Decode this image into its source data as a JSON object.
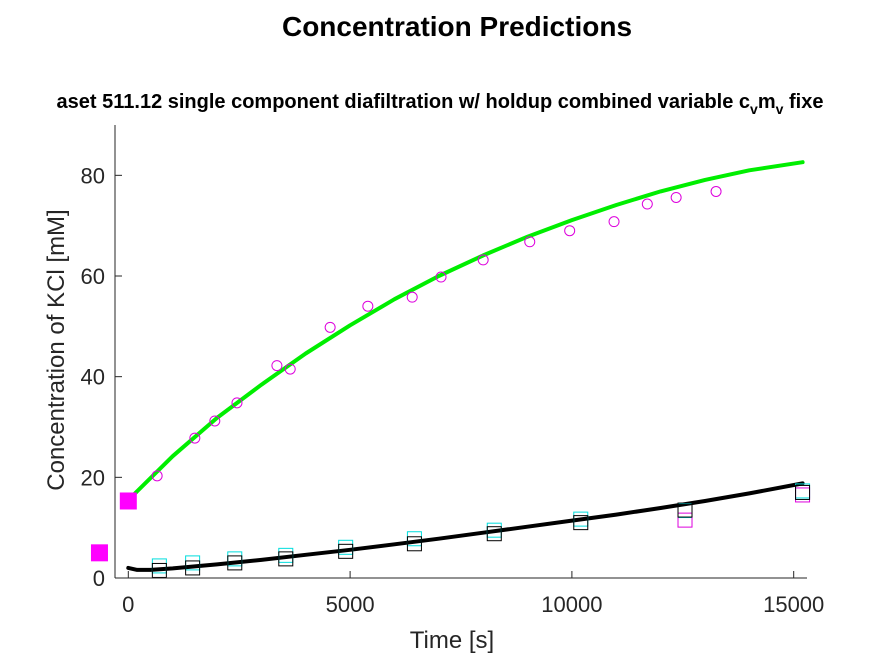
{
  "chart_data": {
    "type": "scatter",
    "title": "Concentration Predictions",
    "subtitle_parts": [
      "aset 511.12 single component diafiltration w/ holdup combined variable c",
      "v",
      "m",
      "v",
      " fixe"
    ],
    "xlabel": "Time [s]",
    "ylabel": "Concentration of KCl [mM]",
    "xlim": [
      -300,
      15300
    ],
    "ylim": [
      0,
      90
    ],
    "xticks": [
      0,
      5000,
      10000,
      15000
    ],
    "xtick_labels": [
      "0",
      "5000",
      "10000",
      "15000"
    ],
    "yticks": [
      0,
      20,
      40,
      60,
      80
    ],
    "ytick_labels": [
      "0",
      "20",
      "40",
      "60",
      "80"
    ],
    "grid": false,
    "legend": "none",
    "series": [
      {
        "kind": "line",
        "color": "#00ee00",
        "x": [
          0,
          1000,
          2000,
          3000,
          4000,
          5000,
          6000,
          7000,
          8000,
          9000,
          10000,
          11000,
          12000,
          13000,
          14000,
          15200
        ],
        "y": [
          15.5,
          24.2,
          31.8,
          38.4,
          44.6,
          50.2,
          55.4,
          60.0,
          64.1,
          67.8,
          71.1,
          74.1,
          76.8,
          79.1,
          81.0,
          82.6
        ]
      },
      {
        "kind": "line",
        "color": "#000000",
        "x": [
          0,
          200,
          500,
          1000,
          2000,
          3000,
          4000,
          5000,
          6000,
          7000,
          8000,
          9000,
          10000,
          11000,
          12000,
          13000,
          14000,
          15200
        ],
        "y": [
          2.0,
          1.6,
          1.6,
          1.9,
          2.7,
          3.6,
          4.6,
          5.6,
          6.7,
          7.8,
          9.0,
          10.2,
          11.4,
          12.6,
          13.9,
          15.3,
          16.8,
          18.8
        ]
      },
      {
        "kind": "markers",
        "marker": "circle",
        "color": "#dd00dd",
        "x": [
          650,
          1500,
          1950,
          2450,
          3350,
          3650,
          4550,
          5400,
          6400,
          7050,
          8000,
          9050,
          9950,
          10950,
          11700,
          12350,
          13250
        ],
        "y": [
          20.3,
          27.8,
          31.2,
          34.8,
          42.2,
          41.5,
          49.8,
          54.0,
          55.8,
          59.8,
          63.2,
          66.8,
          69.0,
          70.8,
          74.3,
          75.6,
          76.8
        ]
      },
      {
        "kind": "markers",
        "marker": "square",
        "color": "#00dddd",
        "x": [
          700,
          1450,
          2400,
          3550,
          4900,
          6450,
          8250,
          10200,
          12550,
          15200
        ],
        "y": [
          2.4,
          3.0,
          3.8,
          4.5,
          6.1,
          7.8,
          9.5,
          11.7,
          13.4,
          17.3
        ]
      },
      {
        "kind": "markers",
        "marker": "square",
        "color": "#dd00dd",
        "x": [
          12550,
          15200
        ],
        "y": [
          11.5,
          16.5
        ]
      },
      {
        "kind": "markers",
        "marker": "square",
        "color": "#000000",
        "x": [
          700,
          1450,
          2400,
          3550,
          4900,
          6450,
          8250,
          10200,
          12550,
          15200
        ],
        "y": [
          1.5,
          2.0,
          3.0,
          3.8,
          5.3,
          6.8,
          8.8,
          11.0,
          13.5,
          17.0
        ]
      },
      {
        "kind": "filled-markers",
        "marker": "square",
        "color": "#ff00ff",
        "x": [
          0,
          -650
        ],
        "y": [
          15.3,
          5.0
        ]
      }
    ]
  }
}
